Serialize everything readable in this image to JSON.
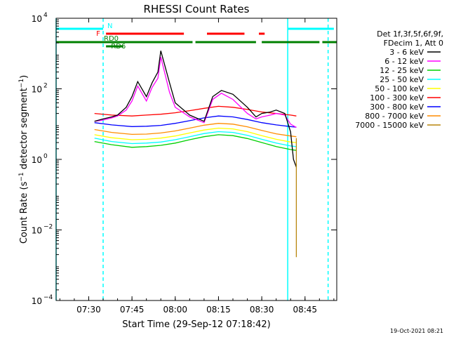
{
  "chart_data": {
    "type": "line",
    "title": "RHESSI Count Rates",
    "xlabel": "Start Time (29-Sep-12 07:18:42)",
    "ylabel": "Count Rate (s⁻¹ detector segment⁻¹)",
    "ylabel_main": "Count Rate (s",
    "ylabel_sup1": "−1",
    "ylabel_mid": " detector segment",
    "ylabel_sup2": "−1",
    "ylabel_end": ")",
    "y_scale": "log",
    "ylim": [
      0.0001,
      10000
    ],
    "xlim": [
      "07:18:42",
      "08:56:00"
    ],
    "x_ticks": [
      "07:30",
      "07:45",
      "08:00",
      "08:15",
      "08:30",
      "08:45"
    ],
    "y_ticks": [
      {
        "base": "10",
        "exp": "−4",
        "value": 0.0001
      },
      {
        "base": "10",
        "exp": "−2",
        "value": 0.01
      },
      {
        "base": "10",
        "exp": "0",
        "value": 1
      },
      {
        "base": "10",
        "exp": "2",
        "value": 100
      },
      {
        "base": "10",
        "exp": "4",
        "value": 10000
      }
    ],
    "grid": false,
    "legend_position": "right",
    "legend_header": [
      "Det 1f,3f,5f,6f,9f,",
      "FDecim 1, Att 0"
    ],
    "series": [
      {
        "name": "3 - 6 keV",
        "color": "#000000",
        "x": [
          "07:32",
          "07:35",
          "07:38",
          "07:40",
          "07:43",
          "07:45",
          "07:47",
          "07:50",
          "07:52",
          "07:54",
          "07:55",
          "07:58",
          "08:00",
          "08:05",
          "08:10",
          "08:13",
          "08:16",
          "08:20",
          "08:25",
          "08:28",
          "08:30",
          "08:33",
          "08:35",
          "08:38",
          "08:40",
          "08:41",
          "08:42"
        ],
        "y": [
          12,
          14,
          16,
          18,
          30,
          60,
          160,
          60,
          150,
          300,
          1200,
          150,
          40,
          18,
          12,
          60,
          90,
          70,
          30,
          16,
          20,
          22,
          25,
          20,
          6,
          1,
          0.6
        ]
      },
      {
        "name": "6 - 12 keV",
        "color": "#ff00ff",
        "x": [
          "07:32",
          "07:35",
          "07:38",
          "07:40",
          "07:43",
          "07:45",
          "07:47",
          "07:50",
          "07:52",
          "07:54",
          "07:55",
          "07:58",
          "08:00",
          "08:05",
          "08:10",
          "08:13",
          "08:16",
          "08:20",
          "08:25",
          "08:28",
          "08:30",
          "08:33",
          "08:35",
          "08:38",
          "08:40",
          "08:42"
        ],
        "y": [
          12,
          13,
          15,
          17,
          25,
          45,
          120,
          45,
          110,
          200,
          800,
          80,
          30,
          16,
          11,
          50,
          75,
          50,
          20,
          14,
          16,
          18,
          20,
          18,
          10,
          8
        ]
      },
      {
        "name": "12 - 25 keV",
        "color": "#00d000",
        "x": [
          "07:32",
          "07:38",
          "07:45",
          "07:50",
          "07:55",
          "08:00",
          "08:05",
          "08:10",
          "08:15",
          "08:20",
          "08:25",
          "08:30",
          "08:35",
          "08:40",
          "08:42"
        ],
        "y": [
          3.2,
          2.6,
          2.2,
          2.3,
          2.5,
          2.9,
          3.6,
          4.4,
          5.0,
          4.7,
          3.9,
          3.0,
          2.3,
          1.9,
          1.8
        ]
      },
      {
        "name": "25 - 50 keV",
        "color": "#00ffff",
        "x": [
          "07:32",
          "07:38",
          "07:45",
          "07:50",
          "07:55",
          "08:00",
          "08:05",
          "08:10",
          "08:15",
          "08:20",
          "08:25",
          "08:30",
          "08:35",
          "08:40",
          "08:42"
        ],
        "y": [
          4.0,
          3.2,
          2.8,
          2.9,
          3.1,
          3.6,
          4.4,
          5.4,
          6.1,
          5.8,
          4.8,
          3.7,
          2.9,
          2.4,
          2.3
        ]
      },
      {
        "name": "50 - 100 keV",
        "color": "#ffff00",
        "x": [
          "07:32",
          "07:38",
          "07:45",
          "07:50",
          "07:55",
          "08:00",
          "08:05",
          "08:10",
          "08:15",
          "08:20",
          "08:25",
          "08:30",
          "08:35",
          "08:40",
          "08:42"
        ],
        "y": [
          5.0,
          4.1,
          3.6,
          3.7,
          4.0,
          4.6,
          5.6,
          6.8,
          7.7,
          7.3,
          6.1,
          4.7,
          3.7,
          3.1,
          3.0
        ]
      },
      {
        "name": "100 - 300 keV",
        "color": "#ff0000",
        "x": [
          "07:32",
          "07:38",
          "07:45",
          "07:50",
          "07:55",
          "08:00",
          "08:05",
          "08:10",
          "08:15",
          "08:20",
          "08:25",
          "08:30",
          "08:35",
          "08:40",
          "08:42"
        ],
        "y": [
          20,
          18,
          17,
          18,
          19,
          21,
          24,
          28,
          32,
          30,
          26,
          22,
          20,
          18,
          17
        ]
      },
      {
        "name": "300 - 800 keV",
        "color": "#0000ff",
        "x": [
          "07:32",
          "07:38",
          "07:45",
          "07:50",
          "07:55",
          "08:00",
          "08:05",
          "08:10",
          "08:15",
          "08:20",
          "08:25",
          "08:30",
          "08:35",
          "08:40",
          "08:42"
        ],
        "y": [
          11,
          9.5,
          8.5,
          8.7,
          9.2,
          10.5,
          12.5,
          15,
          17,
          16,
          13.5,
          11,
          9.5,
          8.5,
          8.2
        ]
      },
      {
        "name": "800 - 7000 keV",
        "color": "#ff8c00",
        "x": [
          "07:32",
          "07:38",
          "07:45",
          "07:50",
          "07:55",
          "08:00",
          "08:05",
          "08:10",
          "08:15",
          "08:20",
          "08:25",
          "08:30",
          "08:35",
          "08:40",
          "08:42"
        ],
        "y": [
          7.0,
          5.8,
          5.1,
          5.2,
          5.6,
          6.4,
          7.7,
          9.3,
          10.5,
          10.0,
          8.4,
          6.6,
          5.3,
          4.6,
          4.4
        ]
      },
      {
        "name": "7000 - 15000 keV",
        "color": "#b8860b",
        "x": [
          "08:42",
          "08:42"
        ],
        "y": [
          4.0,
          0.0017
        ]
      }
    ],
    "state_bars": [
      {
        "label": "N",
        "color": "#00ffff",
        "segments": [
          [
            "07:18:42",
            "07:35"
          ],
          [
            "08:39",
            "08:55"
          ]
        ]
      },
      {
        "label": "F",
        "color": "#ff0000",
        "segments": [
          [
            "07:36",
            "08:03"
          ],
          [
            "08:11",
            "08:24"
          ],
          [
            "08:29",
            "08:31"
          ]
        ]
      },
      {
        "label": "RD0",
        "color": "#008000",
        "segments": [
          [
            "07:18:42",
            "08:06"
          ],
          [
            "08:07",
            "08:28"
          ],
          [
            "08:30",
            "08:50"
          ],
          [
            "08:51",
            "08:56"
          ]
        ]
      },
      {
        "label": "RD6",
        "color": "#008000",
        "segments": [
          [
            "07:36",
            "07:42"
          ]
        ]
      }
    ],
    "vertical_lines": [
      {
        "time": "07:18:42",
        "style": "solid",
        "color": "#00ffff"
      },
      {
        "time": "07:35",
        "style": "dashed",
        "color": "#00ffff"
      },
      {
        "time": "08:39",
        "style": "solid",
        "color": "#00ffff"
      },
      {
        "time": "08:53",
        "style": "dashed",
        "color": "#00ffff"
      }
    ],
    "footer_timestamp": "19-Oct-2021 08:21"
  }
}
